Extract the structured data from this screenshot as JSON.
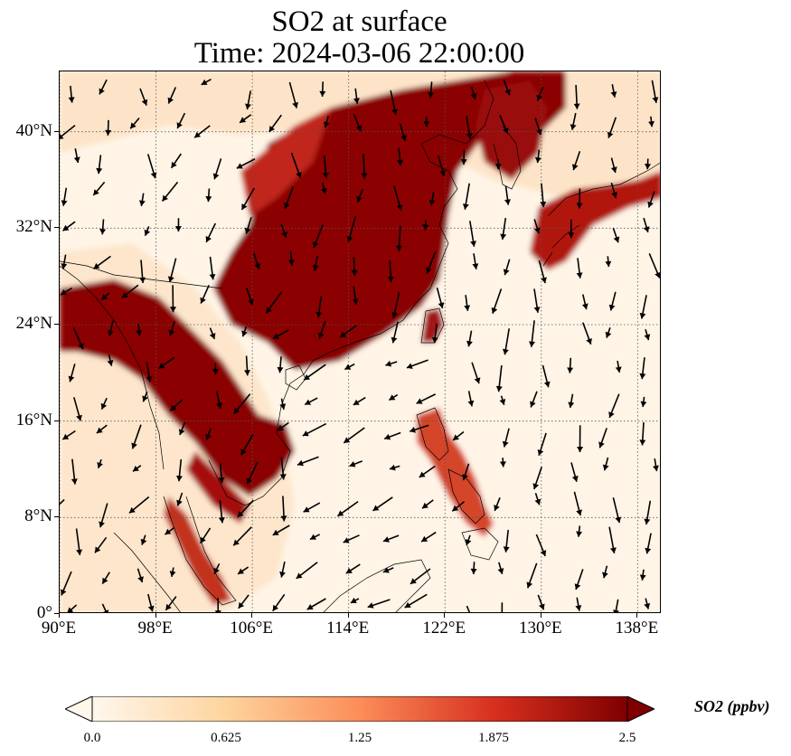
{
  "title": {
    "line1": "SO2 at surface",
    "line2": "Time: 2024-03-06 22:00:00"
  },
  "map": {
    "extent": {
      "lon": [
        90,
        140
      ],
      "lat": [
        0,
        45
      ]
    },
    "lon_ticks": [
      {
        "value": 90,
        "label": "90°E"
      },
      {
        "value": 98,
        "label": "98°E"
      },
      {
        "value": 106,
        "label": "106°E"
      },
      {
        "value": 114,
        "label": "114°E"
      },
      {
        "value": 122,
        "label": "122°E"
      },
      {
        "value": 130,
        "label": "130°E"
      },
      {
        "value": 138,
        "label": "138°E"
      }
    ],
    "lat_ticks": [
      {
        "value": 0,
        "label": "0°"
      },
      {
        "value": 8,
        "label": "8°N"
      },
      {
        "value": 16,
        "label": "16°N"
      },
      {
        "value": 24,
        "label": "24°N"
      },
      {
        "value": 32,
        "label": "32°N"
      },
      {
        "value": 40,
        "label": "40°N"
      }
    ],
    "gridlines": true,
    "field": "SO2 concentration (ppbv), high over eastern China, Korea, Japan, Indochina, Bay of Bengal coast, Philippines; low over open ocean",
    "wind_vectors": true
  },
  "colorbar": {
    "label": "SO2 (ppbv)",
    "colormap": "OrRd",
    "range": [
      0,
      2.5
    ],
    "extend": "both",
    "ticks": [
      "0.0",
      "0.625",
      "1.25",
      "1.875",
      "2.5"
    ],
    "colors": [
      "#fff7ec",
      "#fdd49e",
      "#fc8d59",
      "#d7301f",
      "#7f0000"
    ]
  }
}
